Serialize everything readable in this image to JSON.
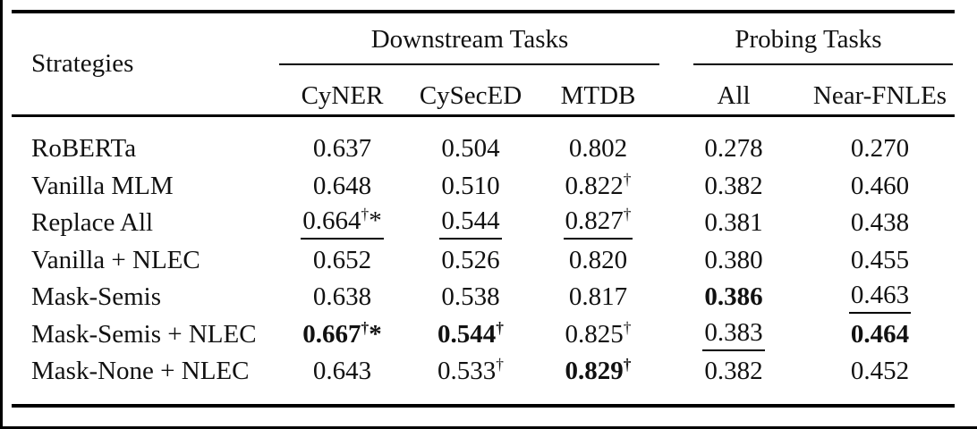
{
  "table": {
    "corner_header": "Strategies",
    "groups": [
      {
        "label": "Downstream Tasks",
        "columns": [
          "CyNER",
          "CySecED",
          "MTDB"
        ]
      },
      {
        "label": "Probing Tasks",
        "columns": [
          "All",
          "Near-FNLEs"
        ]
      }
    ],
    "columns": [
      "CyNER",
      "CySecED",
      "MTDB",
      "All",
      "Near-FNLEs"
    ],
    "rows": [
      {
        "strategy": "RoBERTa",
        "values": [
          {
            "v": "0.637"
          },
          {
            "v": "0.504"
          },
          {
            "v": "0.802"
          },
          {
            "v": "0.278"
          },
          {
            "v": "0.270"
          }
        ]
      },
      {
        "strategy": "Vanilla MLM",
        "values": [
          {
            "v": "0.648"
          },
          {
            "v": "0.510"
          },
          {
            "v": "0.822",
            "sup": "†"
          },
          {
            "v": "0.382"
          },
          {
            "v": "0.460"
          }
        ]
      },
      {
        "strategy": "Replace All",
        "values": [
          {
            "v": "0.664",
            "sup": "†",
            "star": true,
            "ul": true
          },
          {
            "v": "0.544",
            "ul": true
          },
          {
            "v": "0.827",
            "sup": "†",
            "ul": true
          },
          {
            "v": "0.381"
          },
          {
            "v": "0.438"
          }
        ]
      },
      {
        "strategy": "Vanilla + NLEC",
        "values": [
          {
            "v": "0.652"
          },
          {
            "v": "0.526"
          },
          {
            "v": "0.820"
          },
          {
            "v": "0.380"
          },
          {
            "v": "0.455"
          }
        ]
      },
      {
        "strategy": "Mask-Semis",
        "values": [
          {
            "v": "0.638"
          },
          {
            "v": "0.538"
          },
          {
            "v": "0.817"
          },
          {
            "v": "0.386",
            "bold": true
          },
          {
            "v": "0.463",
            "ul": true
          }
        ]
      },
      {
        "strategy": "Mask-Semis + NLEC",
        "values": [
          {
            "v": "0.667",
            "sup": "†",
            "star": true,
            "bold": true
          },
          {
            "v": "0.544",
            "sup": "†",
            "bold": true
          },
          {
            "v": "0.825",
            "sup": "†"
          },
          {
            "v": "0.383",
            "ul": true
          },
          {
            "v": "0.464",
            "bold": true
          }
        ]
      },
      {
        "strategy": "Mask-None + NLEC",
        "values": [
          {
            "v": "0.643"
          },
          {
            "v": "0.533",
            "sup": "†"
          },
          {
            "v": "0.829",
            "sup": "†",
            "bold": true
          },
          {
            "v": "0.382"
          },
          {
            "v": "0.452"
          }
        ]
      }
    ],
    "footnote_symbols": {
      "dagger": "†",
      "star": "*"
    }
  },
  "colors": {
    "text": "#111111",
    "rule": "#000000",
    "background": "#ffffff"
  }
}
